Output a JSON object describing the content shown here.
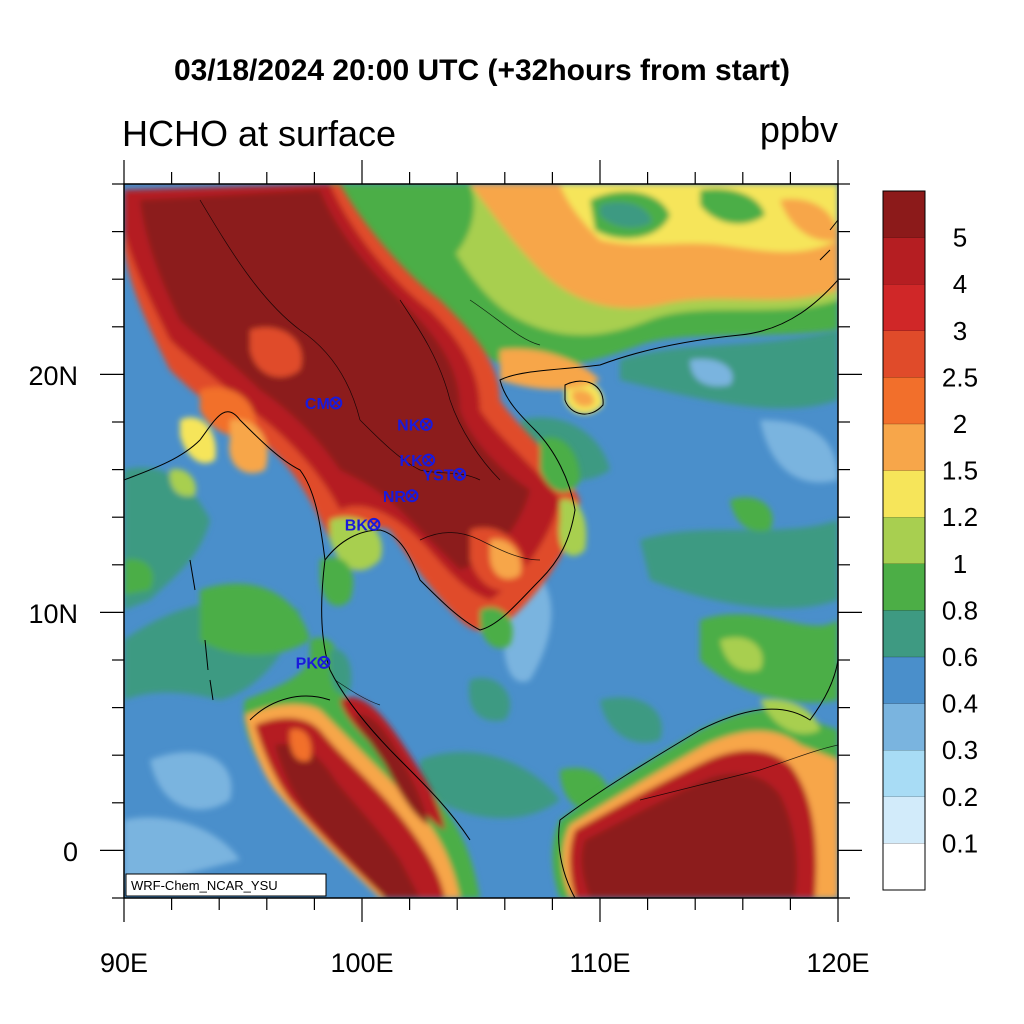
{
  "header": {
    "title": "03/18/2024 20:00 UTC (+32hours from start)",
    "left_subtitle": "HCHO at surface",
    "right_subtitle": "ppbv"
  },
  "map": {
    "lon_range": [
      90,
      120
    ],
    "lat_range": [
      -2,
      28
    ],
    "x_ticks": [
      "90E",
      "100E",
      "110E",
      "120E"
    ],
    "x_tick_values": [
      90,
      100,
      110,
      120
    ],
    "y_ticks": [
      "0",
      "10N",
      "20N"
    ],
    "y_tick_values": [
      0,
      10,
      20
    ],
    "ocean_color": "#4a8fcb",
    "credit": "WRF-Chem_NCAR_YSU"
  },
  "stations": [
    {
      "label": "CM",
      "lon": 98.9,
      "lat": 18.8
    },
    {
      "label": "NK",
      "lon": 102.7,
      "lat": 17.9
    },
    {
      "label": "KK",
      "lon": 102.8,
      "lat": 16.4
    },
    {
      "label": "YST",
      "lon": 104.1,
      "lat": 15.8
    },
    {
      "label": "NR",
      "lon": 102.1,
      "lat": 14.9
    },
    {
      "label": "BK",
      "lon": 100.5,
      "lat": 13.7
    },
    {
      "label": "PK",
      "lon": 98.4,
      "lat": 7.9
    }
  ],
  "colorbar": {
    "labels": [
      "5",
      "4",
      "3",
      "2.5",
      "2",
      "1.5",
      "1.2",
      "1",
      "0.8",
      "0.6",
      "0.4",
      "0.3",
      "0.2",
      "0.1"
    ],
    "colors": [
      "#8c1a1a",
      "#b51e22",
      "#d02728",
      "#e04b2a",
      "#f26f2b",
      "#f7a64a",
      "#f6e55a",
      "#a8cf50",
      "#4cae46",
      "#3e9a82",
      "#4a8fcb",
      "#7ab4df",
      "#a8dcf5",
      "#d2ebfa",
      "#ffffff"
    ]
  }
}
